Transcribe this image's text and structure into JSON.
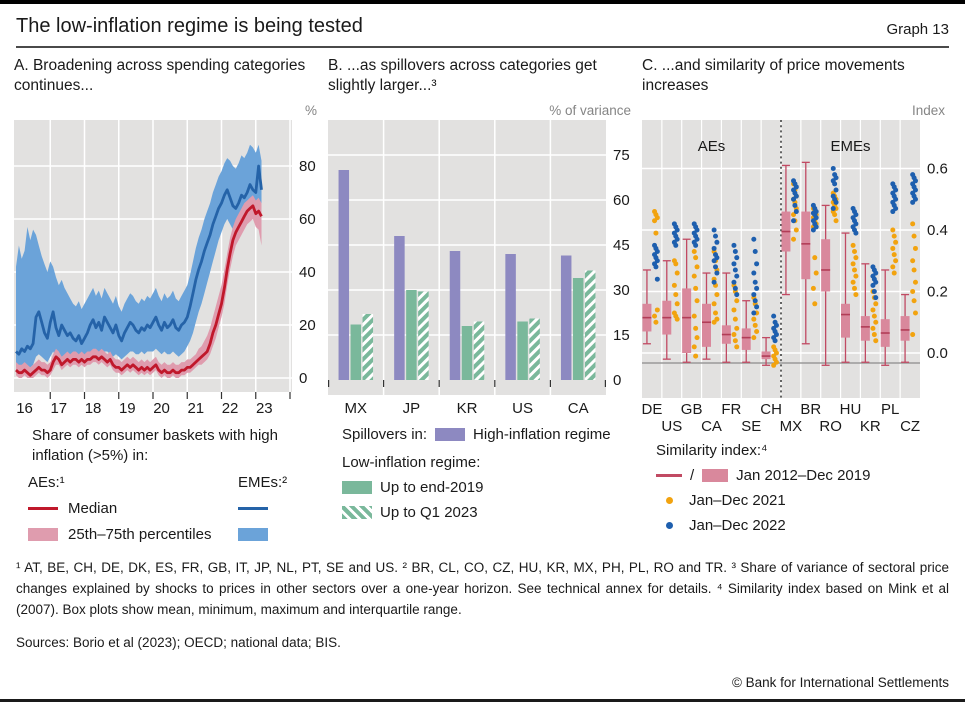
{
  "header": {
    "title": "The low-inflation regime is being tested",
    "graph_label": "Graph 13"
  },
  "colors": {
    "panel_bg": "#e2e1e0",
    "grid": "#ffffff",
    "axis_text": "#1a1a1a",
    "unit_text": "#858585",
    "aes_line": "#c0182b",
    "aes_band": "#df9cae",
    "emes_line": "#2563a8",
    "emes_band": "#6ba3d9",
    "purple": "#8d89c1",
    "green": "#7ab89b",
    "box_fill": "#d9889c",
    "box_stroke": "#c14a63",
    "box_mean": "#b23d57",
    "dot_2021": "#f2a30f",
    "dot_2022": "#1e5fae",
    "baseline": "#999999",
    "separator": "#2b2b2b"
  },
  "chart_data": [
    {
      "panel": "A",
      "type": "line",
      "title": "A. Broadening across spending categories continues...",
      "unit": "%",
      "ylabel": "Share of consumer baskets with high inflation (>5%)",
      "ylim": [
        0,
        91
      ],
      "yticks": [
        0,
        20,
        40,
        60,
        80
      ],
      "x_years": [
        "16",
        "17",
        "18",
        "19",
        "20",
        "21",
        "22",
        "23"
      ],
      "x_resolution": "monthly, Jan 2016 - Mar 2023",
      "grid": true,
      "series": {
        "aes_median": [
          3,
          2,
          2,
          3,
          2,
          1,
          2,
          3,
          4,
          3,
          3,
          2,
          3,
          6,
          8,
          7,
          5,
          6,
          7,
          6,
          7,
          7,
          6,
          7,
          6,
          7,
          7,
          8,
          8,
          7,
          8,
          7,
          6,
          7,
          5,
          4,
          4,
          3,
          4,
          5,
          4,
          5,
          4,
          3,
          4,
          3,
          4,
          3,
          4,
          5,
          3,
          2,
          3,
          2,
          2,
          3,
          2,
          2,
          3,
          3,
          4,
          4,
          5,
          6,
          7,
          8,
          9,
          10,
          13,
          17,
          20,
          24,
          28,
          34,
          41,
          47,
          52,
          55,
          57,
          59,
          61,
          63,
          64,
          65,
          62,
          63,
          61
        ],
        "aes_p25": [
          1,
          0,
          0,
          1,
          0,
          0,
          0,
          1,
          2,
          1,
          1,
          0,
          1,
          3,
          5,
          5,
          3,
          4,
          5,
          4,
          5,
          5,
          4,
          5,
          4,
          5,
          5,
          6,
          6,
          5,
          6,
          5,
          4,
          5,
          3,
          2,
          2,
          1,
          2,
          3,
          2,
          3,
          2,
          1,
          2,
          1,
          2,
          1,
          2,
          3,
          1,
          0,
          1,
          0,
          0,
          1,
          0,
          0,
          1,
          1,
          2,
          2,
          3,
          4,
          5,
          5,
          6,
          7,
          9,
          12,
          15,
          19,
          23,
          28,
          35,
          41,
          46,
          50,
          52,
          54,
          56,
          58,
          59,
          60,
          57,
          56,
          50
        ],
        "aes_p75": [
          6,
          5,
          5,
          6,
          5,
          4,
          5,
          6,
          7,
          6,
          6,
          5,
          6,
          9,
          11,
          10,
          8,
          9,
          10,
          9,
          10,
          10,
          9,
          10,
          9,
          10,
          10,
          11,
          11,
          10,
          11,
          10,
          9,
          10,
          8,
          7,
          7,
          6,
          7,
          8,
          7,
          8,
          7,
          6,
          7,
          6,
          7,
          6,
          7,
          8,
          6,
          5,
          6,
          5,
          5,
          6,
          5,
          5,
          6,
          6,
          7,
          7,
          8,
          9,
          11,
          12,
          14,
          16,
          19,
          23,
          27,
          31,
          35,
          41,
          47,
          53,
          57,
          60,
          62,
          64,
          66,
          67,
          68,
          69,
          67,
          68,
          66
        ],
        "emes_median": [
          10,
          9,
          11,
          10,
          12,
          11,
          13,
          23,
          25,
          21,
          17,
          15,
          21,
          25,
          19,
          16,
          20,
          18,
          16,
          17,
          15,
          14,
          16,
          13,
          15,
          17,
          20,
          22,
          19,
          21,
          18,
          23,
          21,
          19,
          17,
          20,
          16,
          14,
          17,
          19,
          21,
          20,
          18,
          17,
          19,
          18,
          20,
          19,
          21,
          23,
          20,
          18,
          21,
          19,
          20,
          22,
          19,
          18,
          20,
          21,
          23,
          27,
          32,
          37,
          41,
          44,
          48,
          51,
          54,
          58,
          61,
          64,
          66,
          69,
          71,
          68,
          65,
          64,
          66,
          69,
          68,
          70,
          73,
          71,
          70,
          80,
          71
        ],
        "emes_p25": [
          2,
          2,
          3,
          3,
          4,
          4,
          5,
          8,
          9,
          8,
          7,
          6,
          8,
          10,
          8,
          7,
          8,
          8,
          7,
          7,
          6,
          6,
          7,
          6,
          7,
          8,
          9,
          10,
          9,
          10,
          8,
          10,
          10,
          9,
          8,
          9,
          8,
          7,
          8,
          9,
          10,
          10,
          9,
          9,
          10,
          9,
          10,
          10,
          10,
          11,
          10,
          9,
          10,
          9,
          9,
          10,
          9,
          8,
          9,
          10,
          12,
          14,
          17,
          21,
          25,
          28,
          32,
          36,
          40,
          44,
          48,
          52,
          55,
          58,
          60,
          58,
          56,
          55,
          57,
          60,
          59,
          61,
          63,
          62,
          61,
          65,
          60
        ],
        "emes_p75": [
          42,
          50,
          45,
          48,
          57,
          52,
          56,
          54,
          50,
          46,
          43,
          40,
          44,
          42,
          38,
          35,
          37,
          34,
          32,
          30,
          28,
          27,
          29,
          26,
          28,
          30,
          32,
          34,
          31,
          33,
          30,
          34,
          32,
          30,
          28,
          31,
          27,
          25,
          28,
          30,
          32,
          31,
          29,
          28,
          30,
          29,
          31,
          30,
          32,
          34,
          31,
          29,
          32,
          30,
          31,
          33,
          30,
          29,
          31,
          33,
          35,
          39,
          44,
          49,
          53,
          56,
          60,
          63,
          66,
          70,
          73,
          76,
          78,
          81,
          83,
          82,
          80,
          79,
          81,
          84,
          83,
          85,
          88,
          87,
          85,
          88,
          82
        ]
      },
      "legend": {
        "caption": "Share of consumer baskets with high inflation (>5%) in:",
        "aes_header": "AEs:¹",
        "emes_header": "EMEs:²",
        "median_label": "Median",
        "percentiles_label": "25th–75th percentiles"
      }
    },
    {
      "panel": "B",
      "type": "bar",
      "title": "B. ...as spillovers across categories get slightly larger...³",
      "unit": "% of variance",
      "ylim": [
        0,
        91
      ],
      "yticks": [
        0,
        15,
        30,
        45,
        60,
        75
      ],
      "categories": [
        "MX",
        "JP",
        "KR",
        "US",
        "CA"
      ],
      "grid": true,
      "series": [
        {
          "name": "High-inflation regime",
          "style": "purple",
          "values": [
            70,
            48,
            43,
            42,
            41.5
          ]
        },
        {
          "name": "Low-inflation regime: Up to end-2019",
          "style": "green",
          "values": [
            18.5,
            30,
            18,
            19.5,
            34
          ]
        },
        {
          "name": "Low-inflation regime: Up to Q1 2023",
          "style": "green-hatched",
          "values": [
            22,
            29.5,
            19.5,
            20.5,
            36.5
          ]
        }
      ],
      "legend": {
        "spillovers_label": "Spillovers in:",
        "high_regime_label": "High-inflation regime",
        "low_regime_header": "Low-inflation regime:",
        "end2019_label": "Up to end-2019",
        "q12023_label": "Up to Q1 2023"
      }
    },
    {
      "panel": "C",
      "type": "box-scatter",
      "title": "C. ...and similarity of price movements increases",
      "unit": "Index",
      "ylim": [
        -0.15,
        0.76
      ],
      "yticks": [
        "0.0",
        "0.2",
        "0.4",
        "0.6"
      ],
      "ytick_values": [
        0,
        0.2,
        0.4,
        0.6
      ],
      "group_labels": [
        "AEs",
        "EMEs"
      ],
      "separator_after_index": 6,
      "categories": [
        "DE",
        "US",
        "GB",
        "CA",
        "FR",
        "SE",
        "CH",
        "MX",
        "BR",
        "RO",
        "HU",
        "KR",
        "PL",
        "CZ"
      ],
      "boxes": [
        {
          "min": 0.03,
          "q1": 0.07,
          "mean": 0.115,
          "q3": 0.16,
          "max": 0.27
        },
        {
          "min": -0.02,
          "q1": 0.06,
          "mean": 0.115,
          "q3": 0.17,
          "max": 0.3
        },
        {
          "min": -0.03,
          "q1": 0.0,
          "mean": 0.115,
          "q3": 0.21,
          "max": 0.37
        },
        {
          "min": -0.02,
          "q1": 0.02,
          "mean": 0.1,
          "q3": 0.16,
          "max": 0.26
        },
        {
          "min": -0.03,
          "q1": 0.03,
          "mean": 0.06,
          "q3": 0.09,
          "max": 0.26
        },
        {
          "min": -0.03,
          "q1": 0.01,
          "mean": 0.05,
          "q3": 0.08,
          "max": 0.17
        },
        {
          "min": -0.04,
          "q1": -0.02,
          "mean": -0.01,
          "q3": 0.005,
          "max": 0.05
        },
        {
          "min": 0.19,
          "q1": 0.33,
          "mean": 0.395,
          "q3": 0.46,
          "max": 0.61
        },
        {
          "min": 0.03,
          "q1": 0.24,
          "mean": 0.355,
          "q3": 0.46,
          "max": 0.62
        },
        {
          "min": -0.04,
          "q1": 0.2,
          "mean": 0.27,
          "q3": 0.37,
          "max": 0.48
        },
        {
          "min": -0.03,
          "q1": 0.05,
          "mean": 0.125,
          "q3": 0.16,
          "max": 0.39
        },
        {
          "min": -0.03,
          "q1": 0.04,
          "mean": 0.085,
          "q3": 0.12,
          "max": 0.29
        },
        {
          "min": -0.04,
          "q1": 0.02,
          "mean": 0.065,
          "q3": 0.11,
          "max": 0.27
        },
        {
          "min": -0.03,
          "q1": 0.04,
          "mean": 0.075,
          "q3": 0.12,
          "max": 0.19
        }
      ],
      "dots_2021": [
        [
          0.46,
          0.45,
          0.44,
          0.43,
          0.39,
          0.14,
          0.12,
          0.1
        ],
        [
          0.3,
          0.29,
          0.26,
          0.22,
          0.19,
          0.16,
          0.13,
          0.12,
          0.11
        ],
        [
          0.33,
          0.31,
          0.28,
          0.25,
          0.21,
          0.17,
          0.12,
          0.08,
          0.05,
          0.02,
          -0.01
        ],
        [
          0.33,
          0.3,
          0.27,
          0.24,
          0.22,
          0.19,
          0.16,
          0.13,
          0.11,
          0.1
        ],
        [
          0.22,
          0.2,
          0.17,
          0.14,
          0.11,
          0.08,
          0.06,
          0.04,
          0.02
        ],
        [
          0.18,
          0.16,
          0.13,
          0.11,
          0.09,
          0.07,
          0.05
        ],
        [
          0.02,
          0.01,
          0.0,
          -0.01,
          -0.02,
          -0.03,
          -0.04
        ],
        [
          0.55,
          0.53,
          0.51,
          0.5,
          0.49,
          0.47,
          0.45,
          0.43,
          0.4,
          0.37
        ],
        [
          0.47,
          0.46,
          0.45,
          0.44,
          0.43,
          0.42,
          0.41,
          0.31,
          0.26,
          0.21,
          0.16
        ],
        [
          0.52,
          0.51,
          0.5,
          0.49,
          0.48,
          0.47,
          0.46,
          0.45,
          0.43
        ],
        [
          0.35,
          0.33,
          0.31,
          0.29,
          0.27,
          0.25,
          0.23,
          0.21,
          0.19
        ],
        [
          0.2,
          0.18,
          0.16,
          0.14,
          0.12,
          0.1,
          0.08,
          0.06,
          0.04
        ],
        [
          0.4,
          0.38,
          0.36,
          0.34,
          0.32,
          0.3,
          0.28,
          0.26
        ],
        [
          0.42,
          0.38,
          0.34,
          0.3,
          0.27,
          0.23,
          0.2,
          0.17,
          0.13,
          0.06
        ]
      ],
      "dots_2022": [
        [
          0.35,
          0.34,
          0.33,
          0.32,
          0.31,
          0.3,
          0.29,
          0.28,
          0.24
        ],
        [
          0.42,
          0.41,
          0.4,
          0.39,
          0.38,
          0.37,
          0.36,
          0.35
        ],
        [
          0.42,
          0.41,
          0.4,
          0.39,
          0.38,
          0.37,
          0.36,
          0.35
        ],
        [
          0.4,
          0.38,
          0.36,
          0.34,
          0.32,
          0.31,
          0.3,
          0.28,
          0.26,
          0.23
        ],
        [
          0.35,
          0.33,
          0.31,
          0.29,
          0.27,
          0.25,
          0.23,
          0.21,
          0.19
        ],
        [
          0.37,
          0.33,
          0.29,
          0.26,
          0.23,
          0.21,
          0.19,
          0.17,
          0.15,
          0.13
        ],
        [
          0.12,
          0.1,
          0.09,
          0.08,
          0.07,
          0.06,
          0.05,
          0.04
        ],
        [
          0.56,
          0.55,
          0.54,
          0.53,
          0.52,
          0.51,
          0.5,
          0.48,
          0.46,
          0.43
        ],
        [
          0.48,
          0.47,
          0.46,
          0.455,
          0.45,
          0.44,
          0.43,
          0.42,
          0.41,
          0.4
        ],
        [
          0.6,
          0.58,
          0.57,
          0.56,
          0.55,
          0.53,
          0.51,
          0.5,
          0.49,
          0.47
        ],
        [
          0.47,
          0.46,
          0.45,
          0.44,
          0.43,
          0.42,
          0.41,
          0.4,
          0.39
        ],
        [
          0.28,
          0.27,
          0.26,
          0.25,
          0.24,
          0.23,
          0.22,
          0.2,
          0.18
        ],
        [
          0.55,
          0.54,
          0.53,
          0.52,
          0.51,
          0.5,
          0.49,
          0.48,
          0.47,
          0.46
        ],
        [
          0.58,
          0.57,
          0.56,
          0.55,
          0.54,
          0.53,
          0.52,
          0.51,
          0.5,
          0.49
        ]
      ],
      "legend": {
        "header": "Similarity index:⁴",
        "slash": "/",
        "box_label": "Jan 2012–Dec 2019",
        "dots2021_label": "Jan–Dec 2021",
        "dots2022_label": "Jan–Dec 2022"
      }
    }
  ],
  "footnotes": "¹ AT, BE, CH, DE, DK, ES, FR, GB, IT, JP, NL, PT, SE and US.   ² BR, CL, CO, CZ, HU, KR, MX, PH, PL, RO and TR.   ³ Share of variance of sectoral price changes explained by shocks to prices in other sectors over a one-year horizon. See technical annex for details.   ⁴ Similarity index based on Mink et al (2007). Box plots show mean, minimum, maximum and interquartile range.",
  "sources": "Sources: Borio et al (2023); OECD; national data; BIS.",
  "footer": "© Bank for International Settlements"
}
